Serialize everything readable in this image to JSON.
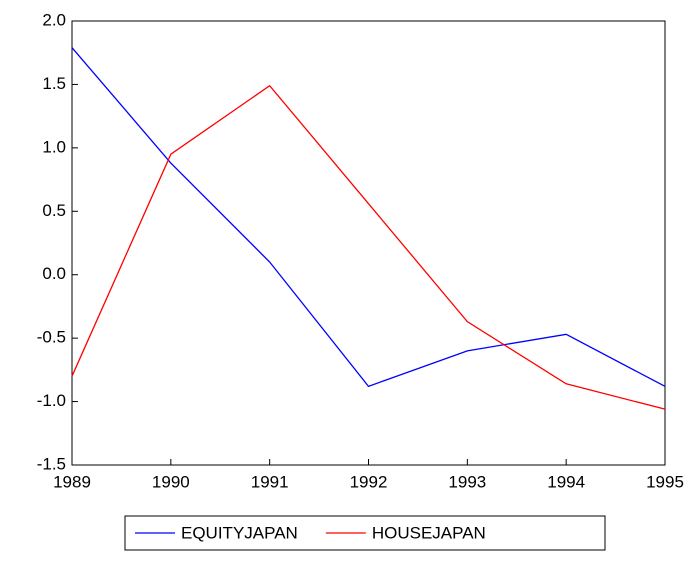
{
  "chart_data": {
    "type": "line",
    "x": [
      1989,
      1990,
      1991,
      1992,
      1993,
      1994,
      1995
    ],
    "series": [
      {
        "name": "EQUITYJAPAN",
        "color": "#0000ff",
        "values": [
          1.79,
          0.88,
          0.1,
          -0.88,
          -0.6,
          -0.47,
          -0.88
        ]
      },
      {
        "name": "HOUSEJAPAN",
        "color": "#ff0000",
        "values": [
          -0.8,
          0.95,
          1.49,
          0.56,
          -0.37,
          -0.86,
          -1.06
        ]
      }
    ],
    "xlim": [
      1989,
      1995
    ],
    "xticks": [
      1989,
      1990,
      1991,
      1992,
      1993,
      1994,
      1995
    ],
    "ylim": [
      -1.5,
      2.0
    ],
    "yticks": [
      -1.5,
      {
        "value": -1.0,
        "label": "-1.0"
      },
      -0.5,
      {
        "value": 0,
        "label": "0.0"
      },
      0.5,
      {
        "value": 1.0,
        "label": "1.0"
      },
      1.5,
      {
        "value": 2.0,
        "label": "2.0"
      }
    ],
    "legend": "bottom"
  }
}
